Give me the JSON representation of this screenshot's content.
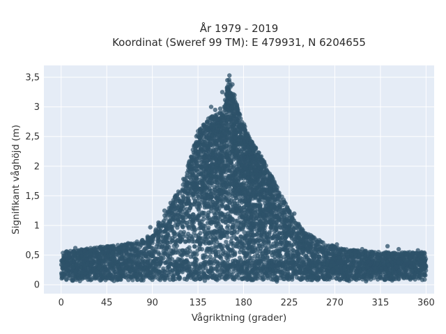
{
  "chart_data": {
    "type": "scatter",
    "title_line1": "År 1979 - 2019",
    "title_line2": "Koordinat (Sweref 99 TM): E 479931, N 6204655",
    "xlabel": "Vågriktning (grader)",
    "ylabel": "Signifikant våghöjd (m)",
    "xlim": [
      -17,
      368
    ],
    "ylim": [
      -0.15,
      3.7
    ],
    "x_ticks": [
      0,
      45,
      90,
      135,
      180,
      225,
      270,
      315,
      360
    ],
    "x_tick_labels": [
      "0",
      "45",
      "90",
      "135",
      "180",
      "225",
      "270",
      "315",
      "360"
    ],
    "y_ticks": [
      0,
      0.5,
      1,
      1.5,
      2,
      2.5,
      3,
      3.5
    ],
    "y_tick_labels": [
      "0",
      "0,5",
      "1",
      "1,5",
      "2",
      "2,5",
      "3",
      "3,5"
    ],
    "grid": true,
    "colors": {
      "marker": "#2e5269",
      "plot_bg": "#e5ecf6",
      "grid": "#ffffff"
    },
    "envelope": {
      "x": [
        0,
        20,
        45,
        70,
        90,
        105,
        120,
        135,
        145,
        160,
        165,
        175,
        185,
        200,
        210,
        225,
        240,
        260,
        280,
        315,
        340,
        360
      ],
      "ymax": [
        0.55,
        0.6,
        0.65,
        0.7,
        0.85,
        1.25,
        1.75,
        2.6,
        2.8,
        2.95,
        3.5,
        2.95,
        2.5,
        2.1,
        1.75,
        1.25,
        0.9,
        0.7,
        0.6,
        0.55,
        0.55,
        0.55
      ]
    },
    "outliers": [
      {
        "x": 166,
        "y": 3.53
      },
      {
        "x": 164,
        "y": 3.45
      },
      {
        "x": 169,
        "y": 3.38
      },
      {
        "x": 159,
        "y": 3.25
      },
      {
        "x": 167,
        "y": 3.21
      },
      {
        "x": 171,
        "y": 3.2
      },
      {
        "x": 166,
        "y": 3.15
      },
      {
        "x": 163,
        "y": 3.1
      },
      {
        "x": 148,
        "y": 3.0
      },
      {
        "x": 157,
        "y": 2.97
      },
      {
        "x": 175,
        "y": 2.9
      },
      {
        "x": 152,
        "y": 2.95
      },
      {
        "x": 173,
        "y": 2.8
      },
      {
        "x": 181,
        "y": 2.62
      },
      {
        "x": 190,
        "y": 2.35
      },
      {
        "x": 198,
        "y": 2.1
      },
      {
        "x": 206,
        "y": 1.8
      },
      {
        "x": 215,
        "y": 1.55
      },
      {
        "x": 224,
        "y": 1.25
      },
      {
        "x": 230,
        "y": 1.2
      },
      {
        "x": 237,
        "y": 0.92
      },
      {
        "x": 244,
        "y": 0.85
      },
      {
        "x": 102,
        "y": 1.25
      },
      {
        "x": 96,
        "y": 1.05
      },
      {
        "x": 88,
        "y": 0.97
      },
      {
        "x": 108,
        "y": 1.38
      },
      {
        "x": 117,
        "y": 1.55
      },
      {
        "x": 129,
        "y": 1.95
      },
      {
        "x": 137,
        "y": 2.55
      },
      {
        "x": 141,
        "y": 2.7
      },
      {
        "x": 14,
        "y": 0.62
      },
      {
        "x": 39,
        "y": 0.64
      },
      {
        "x": 66,
        "y": 0.7
      },
      {
        "x": 272,
        "y": 0.68
      },
      {
        "x": 297,
        "y": 0.6
      },
      {
        "x": 322,
        "y": 0.65
      },
      {
        "x": 333,
        "y": 0.6
      },
      {
        "x": 352,
        "y": 0.58
      }
    ]
  }
}
